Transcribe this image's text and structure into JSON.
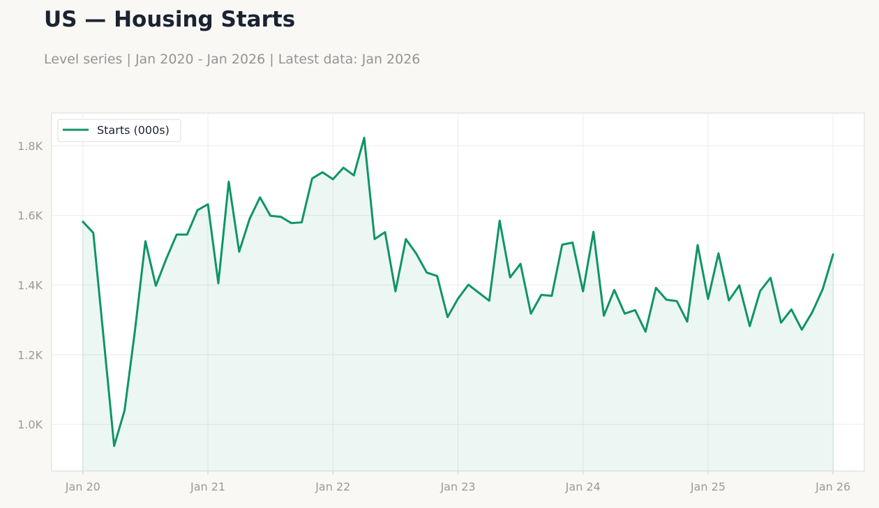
{
  "header": {
    "title": "US — Housing Starts",
    "subtitle": "Level series | Jan 2020 - Jan 2026 | Latest data: Jan 2026"
  },
  "chart_data": {
    "type": "area",
    "title": "US — Housing Starts",
    "subtitle": "Level series | Jan 2020 - Jan 2026 | Latest data: Jan 2026",
    "xlabel": "",
    "ylabel": "",
    "x_start": "2020-01",
    "x_frequency": "monthly",
    "x_ticks": [
      "Jan 20",
      "Jan 21",
      "Jan 22",
      "Jan 23",
      "Jan 24",
      "Jan 25",
      "Jan 26"
    ],
    "y_ticks": [
      1000,
      1200,
      1400,
      1600,
      1800
    ],
    "y_tick_labels": [
      "1.0K",
      "1.2K",
      "1.4K",
      "1.6K",
      "1.8K"
    ],
    "ylim": [
      866,
      1894
    ],
    "xlim": [
      "2019-10",
      "2026-04"
    ],
    "grid": true,
    "legend_position": "top-left",
    "colors": {
      "line": "#0f9467",
      "fill": "#0f9467",
      "background": "#f9f8f5",
      "plot_bg": "#ffffff"
    },
    "series": [
      {
        "name": "Starts (000s)",
        "values": [
          1582,
          1550,
          1245,
          938,
          1040,
          1270,
          1526,
          1398,
          1475,
          1545,
          1545,
          1615,
          1632,
          1405,
          1697,
          1496,
          1590,
          1652,
          1599,
          1596,
          1578,
          1580,
          1706,
          1724,
          1704,
          1737,
          1715,
          1823,
          1532,
          1552,
          1382,
          1532,
          1490,
          1436,
          1426,
          1308,
          1361,
          1401,
          1378,
          1355,
          1585,
          1422,
          1461,
          1318,
          1372,
          1369,
          1516,
          1522,
          1382,
          1553,
          1312,
          1386,
          1318,
          1328,
          1266,
          1392,
          1358,
          1354,
          1295,
          1515,
          1360,
          1491,
          1356,
          1399,
          1282,
          1383,
          1421,
          1292,
          1330,
          1272,
          1322,
          1388,
          1488
        ]
      }
    ]
  }
}
